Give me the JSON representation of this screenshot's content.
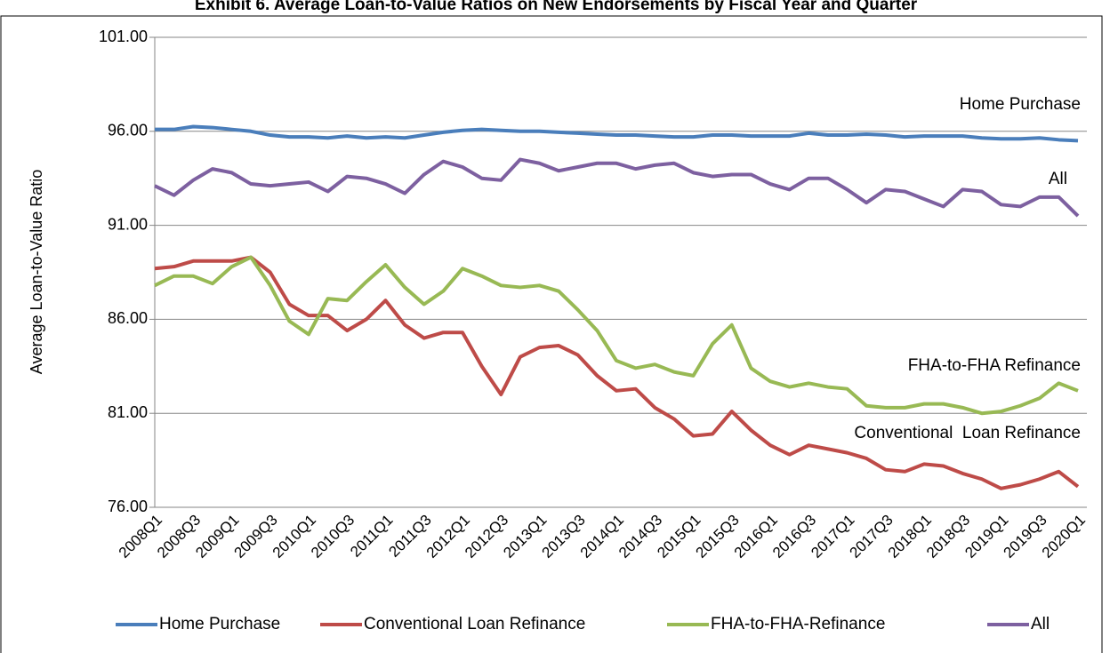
{
  "chart_data": {
    "type": "line",
    "title": "Exhibit 6. Average Loan-to-Value Ratios on New Endorsements by Fiscal Year and Quarter",
    "y_label": "Average Loan-to-Value Ratio",
    "annotations": [
      "Home Purchase",
      "All",
      "FHA-to-FHA Refinance",
      "Conventional  Loan Refinance"
    ],
    "categories": [
      "2008Q1",
      null,
      "2008Q3",
      null,
      "2009Q1",
      null,
      "2009Q3",
      null,
      "2010Q1",
      null,
      "2010Q3",
      null,
      "2011Q1",
      null,
      "2011Q3",
      null,
      "2012Q1",
      null,
      "2012Q3",
      null,
      "2013Q1",
      null,
      "2013Q3",
      null,
      "2014Q1",
      null,
      "2014Q3",
      null,
      "2015Q1",
      null,
      "2015Q3",
      null,
      "2016Q1",
      null,
      "2016Q3",
      null,
      "2017Q1",
      null,
      "2017Q3",
      null,
      "2018Q1",
      null,
      "2018Q3",
      null,
      "2019Q1",
      null,
      "2019Q3",
      null,
      "2020Q1"
    ],
    "series": [
      {
        "name": "Home Purchase",
        "color": "#4a7ebb",
        "values": [
          96.1,
          96.1,
          96.25,
          96.2,
          96.1,
          96.0,
          95.8,
          95.7,
          95.7,
          95.65,
          95.75,
          95.65,
          95.7,
          95.65,
          95.8,
          95.95,
          96.05,
          96.1,
          96.05,
          96.0,
          96.0,
          95.95,
          95.9,
          95.85,
          95.8,
          95.8,
          95.75,
          95.7,
          95.7,
          95.8,
          95.8,
          95.75,
          95.75,
          95.75,
          95.9,
          95.8,
          95.8,
          95.85,
          95.8,
          95.7,
          95.75,
          95.75,
          95.75,
          95.65,
          95.6,
          95.6,
          95.65,
          95.55,
          95.5
        ]
      },
      {
        "name": "Conventional Loan Refinance",
        "color": "#be4b48",
        "values": [
          88.7,
          88.8,
          89.1,
          89.1,
          89.1,
          89.3,
          88.5,
          86.8,
          86.2,
          86.2,
          85.4,
          86.0,
          87.0,
          85.7,
          85.0,
          85.3,
          85.3,
          83.5,
          82.0,
          84.0,
          84.5,
          84.6,
          84.1,
          83.0,
          82.2,
          82.3,
          81.3,
          80.7,
          79.8,
          79.9,
          81.1,
          80.1,
          79.3,
          78.8,
          79.3,
          79.1,
          78.9,
          78.6,
          78.0,
          77.9,
          78.3,
          78.2,
          77.8,
          77.5,
          77.0,
          77.2,
          77.5,
          77.9,
          77.1
        ]
      },
      {
        "name": "FHA-to-FHA-Refinance",
        "color": "#98b954",
        "values": [
          87.8,
          88.3,
          88.3,
          87.9,
          88.8,
          89.3,
          87.8,
          85.9,
          85.2,
          87.1,
          87.0,
          88.0,
          88.9,
          87.7,
          86.8,
          87.5,
          88.7,
          88.3,
          87.8,
          87.7,
          87.8,
          87.5,
          86.5,
          85.4,
          83.8,
          83.4,
          83.6,
          83.2,
          83.0,
          84.7,
          85.7,
          83.4,
          82.7,
          82.4,
          82.6,
          82.4,
          82.3,
          81.4,
          81.3,
          81.3,
          81.5,
          81.5,
          81.3,
          81.0,
          81.1,
          81.4,
          81.8,
          82.6,
          82.2
        ]
      },
      {
        "name": "All",
        "color": "#7d60a0",
        "values": [
          93.1,
          92.6,
          93.4,
          94.0,
          93.8,
          93.2,
          93.1,
          93.2,
          93.3,
          92.8,
          93.6,
          93.5,
          93.2,
          92.7,
          93.7,
          94.4,
          94.1,
          93.5,
          93.4,
          94.5,
          94.3,
          93.9,
          94.1,
          94.3,
          94.3,
          94.0,
          94.2,
          94.3,
          93.8,
          93.6,
          93.7,
          93.7,
          93.2,
          92.9,
          93.5,
          93.5,
          92.9,
          92.2,
          92.9,
          92.8,
          92.4,
          92.0,
          92.9,
          92.8,
          92.1,
          92.0,
          92.5,
          92.5,
          91.5
        ]
      }
    ],
    "ylim": [
      76,
      101
    ],
    "yticks": [
      {
        "value": 76,
        "label": "76.00"
      },
      {
        "value": 81,
        "label": "81.00"
      },
      {
        "value": 86,
        "label": "86.00"
      },
      {
        "value": 91,
        "label": "91.00"
      },
      {
        "value": 96,
        "label": "96.00"
      },
      {
        "value": 101,
        "label": "101.00"
      }
    ],
    "grid": true,
    "legend": "bottom"
  }
}
